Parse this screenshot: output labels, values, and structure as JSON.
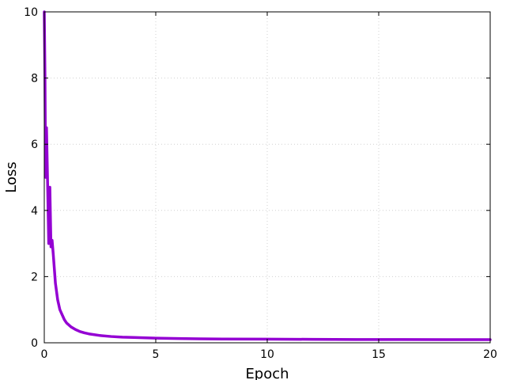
{
  "chart_data": {
    "type": "line",
    "xlabel": "Epoch",
    "ylabel": "Loss",
    "xlim": [
      0,
      20
    ],
    "ylim": [
      0,
      10
    ],
    "x_ticks": [
      0,
      5,
      10,
      15,
      20
    ],
    "y_ticks": [
      0,
      2,
      4,
      6,
      8,
      10
    ],
    "grid": true,
    "line_color": "#9400D3",
    "series": [
      {
        "x": [
          0,
          0.03,
          0.06,
          0.1,
          0.15,
          0.2,
          0.25,
          0.3,
          0.35,
          0.4,
          0.5,
          0.6,
          0.7,
          0.8,
          0.9,
          1.0,
          1.2,
          1.4,
          1.6,
          1.8,
          2.0,
          2.5,
          3.0,
          3.5,
          4.0,
          5.0,
          6.0,
          7.0,
          8.0,
          10.0,
          12.0,
          14.0,
          16.0,
          18.0,
          20.0
        ],
        "values": [
          10.0,
          8.1,
          5.0,
          6.5,
          4.8,
          3.0,
          4.7,
          2.9,
          3.1,
          2.7,
          1.8,
          1.3,
          1.0,
          0.85,
          0.7,
          0.6,
          0.48,
          0.4,
          0.34,
          0.3,
          0.27,
          0.22,
          0.19,
          0.17,
          0.16,
          0.14,
          0.13,
          0.12,
          0.115,
          0.11,
          0.105,
          0.1,
          0.1,
          0.095,
          0.095
        ]
      }
    ]
  }
}
